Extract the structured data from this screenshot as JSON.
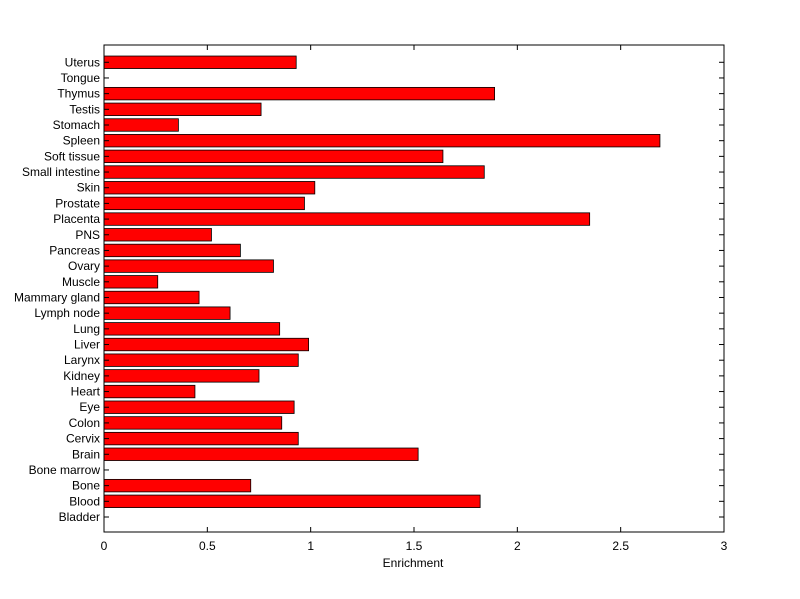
{
  "chart_data": {
    "type": "bar",
    "orientation": "horizontal",
    "title": "",
    "xlabel": "Enrichment",
    "ylabel": "",
    "xlim": [
      0,
      3
    ],
    "xticks": [
      0,
      0.5,
      1,
      1.5,
      2,
      2.5,
      3
    ],
    "xtick_labels": [
      "0",
      "0.5",
      "1",
      "1.5",
      "2",
      "2.5",
      "3"
    ],
    "grid": false,
    "bar_color": "#ff0000",
    "categories": [
      "Bladder",
      "Blood",
      "Bone",
      "Bone marrow",
      "Brain",
      "Cervix",
      "Colon",
      "Eye",
      "Heart",
      "Kidney",
      "Larynx",
      "Liver",
      "Lung",
      "Lymph node",
      "Mammary gland",
      "Muscle",
      "Ovary",
      "Pancreas",
      "PNS",
      "Placenta",
      "Prostate",
      "Skin",
      "Small intestine",
      "Soft tissue",
      "Spleen",
      "Stomach",
      "Testis",
      "Thymus",
      "Tongue",
      "Uterus"
    ],
    "values": [
      0,
      1.82,
      0.71,
      0,
      1.52,
      0.94,
      0.86,
      0.92,
      0.44,
      0.75,
      0.94,
      0.99,
      0.85,
      0.61,
      0.46,
      0.26,
      0.82,
      0.66,
      0.52,
      2.35,
      0.97,
      1.02,
      1.84,
      1.64,
      2.69,
      0.36,
      0.76,
      1.89,
      0,
      0.93
    ]
  }
}
